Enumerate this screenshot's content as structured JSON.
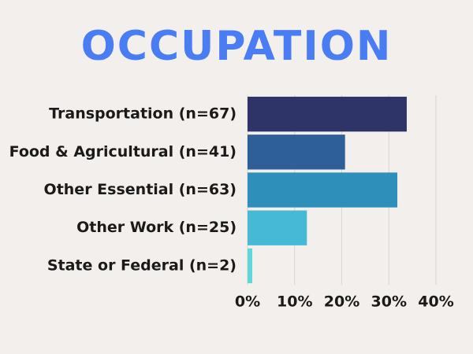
{
  "chart_data": {
    "type": "hbar",
    "title": "OCCUPATION",
    "categories": [
      "Transportation (n=67)",
      "Food & Agricultural (n=41)",
      "Other Essential (n=63)",
      "Other Work (n=25)",
      "State or Federal (n=2)"
    ],
    "values": [
      33.8,
      20.7,
      31.8,
      12.6,
      1.0
    ],
    "colors": [
      "#2f3468",
      "#2e5f98",
      "#2e8fbb",
      "#45b9d6",
      "#5fd8dc"
    ],
    "xlim": [
      0,
      40
    ],
    "xticks": [
      {
        "value": 0,
        "label": "0%"
      },
      {
        "value": 10,
        "label": "10%"
      },
      {
        "value": 20,
        "label": "20%"
      },
      {
        "value": 30,
        "label": "30%"
      },
      {
        "value": 40,
        "label": "40%"
      }
    ],
    "grid": true
  }
}
